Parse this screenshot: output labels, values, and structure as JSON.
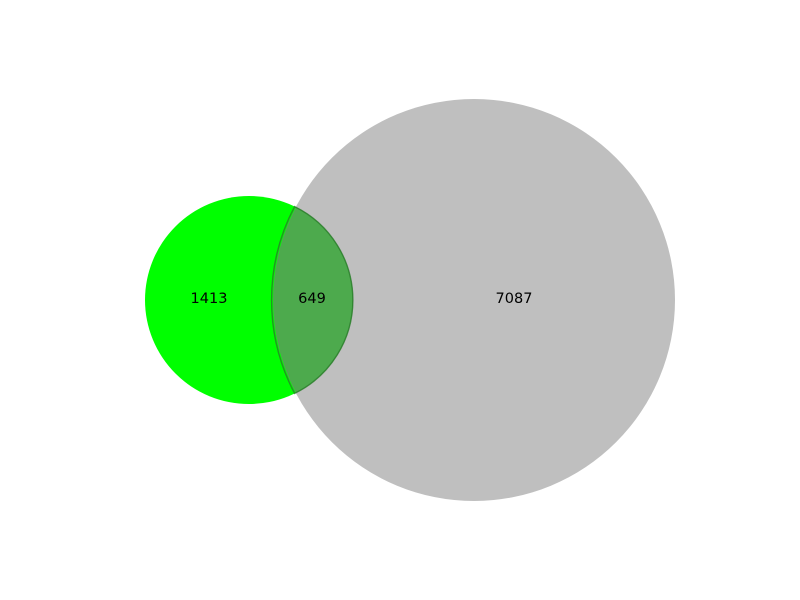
{
  "venn": {
    "left_only": "1413",
    "overlap": "649",
    "right_only": "7087"
  },
  "colors": {
    "left_set": "#00ff00",
    "right_set": "#bfbfbf",
    "overlap_fill": "#4daa4d",
    "overlap_stroke": "#2a7a2a",
    "background": "#ffffff"
  }
}
